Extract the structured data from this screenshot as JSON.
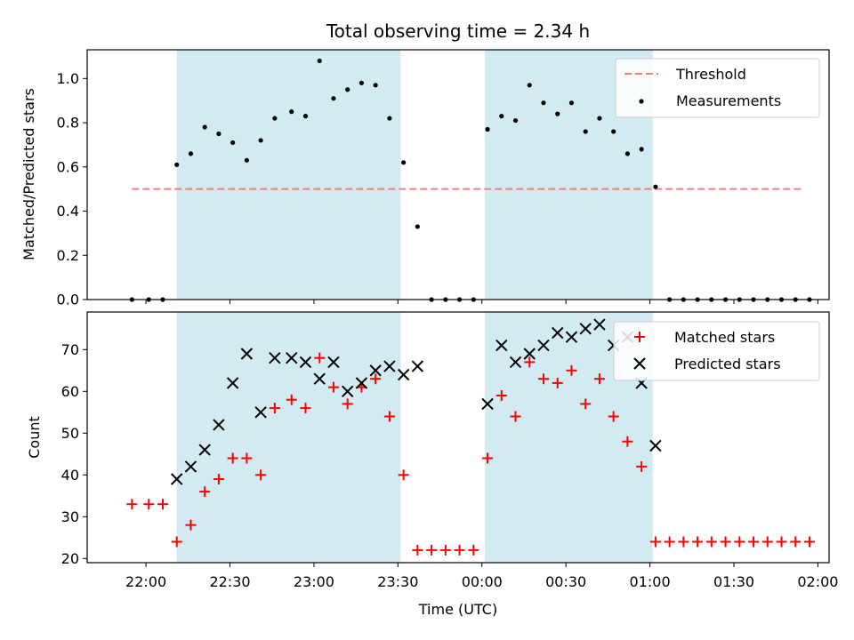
{
  "title": "Total observing time = 2.34 h",
  "chart_data": [
    {
      "type": "scatter",
      "ylabel": "Matched/Predicted stars",
      "ylim": [
        0,
        1.13
      ],
      "yticks": [
        "0.0",
        "0.2",
        "0.4",
        "0.6",
        "0.8",
        "1.0"
      ],
      "threshold": {
        "name": "Threshold",
        "y": 0.5,
        "x_start": "21:55",
        "x_end": "01:55",
        "color": "#f08080"
      },
      "series": [
        {
          "name": "Measurements",
          "color": "#000000",
          "x": [
            "21:55",
            "22:01",
            "22:06",
            "22:11",
            "22:16",
            "22:21",
            "22:26",
            "22:31",
            "22:36",
            "22:41",
            "22:46",
            "22:52",
            "22:57",
            "23:02",
            "23:07",
            "23:12",
            "23:17",
            "23:22",
            "23:27",
            "23:32",
            "23:37",
            "23:42",
            "23:47",
            "23:52",
            "23:57",
            "00:02",
            "00:07",
            "00:12",
            "00:17",
            "00:22",
            "00:27",
            "00:32",
            "00:37",
            "00:42",
            "00:47",
            "00:52",
            "00:57",
            "01:02",
            "01:07",
            "01:12",
            "01:17",
            "01:22",
            "01:27",
            "01:32",
            "01:37",
            "01:42",
            "01:47",
            "01:52",
            "01:57"
          ],
          "y": [
            0,
            0,
            0,
            0.61,
            0.66,
            0.78,
            0.75,
            0.71,
            0.63,
            0.72,
            0.82,
            0.85,
            0.83,
            1.08,
            0.91,
            0.95,
            0.98,
            0.97,
            0.82,
            0.62,
            0.33,
            0,
            0,
            0,
            0,
            0.77,
            0.83,
            0.81,
            0.97,
            0.89,
            0.84,
            0.89,
            0.76,
            0.82,
            0.76,
            0.66,
            0.68,
            0.51,
            0,
            0,
            0,
            0,
            0,
            0,
            0,
            0,
            0,
            0,
            0
          ]
        }
      ],
      "shaded_intervals": [
        [
          "22:11",
          "23:31"
        ],
        [
          "00:01",
          "01:01"
        ]
      ]
    },
    {
      "type": "scatter",
      "xlabel": "Time (UTC)",
      "ylabel": "Count",
      "ylim": [
        19,
        79
      ],
      "yticks": [
        "20",
        "30",
        "40",
        "50",
        "60",
        "70"
      ],
      "xticks": [
        "22:00",
        "22:30",
        "23:00",
        "23:30",
        "00:00",
        "00:30",
        "01:00",
        "01:30",
        "02:00"
      ],
      "series": [
        {
          "name": "Matched stars",
          "marker": "+",
          "color": "#ff0000",
          "x": [
            "21:55",
            "22:01",
            "22:06",
            "22:11",
            "22:16",
            "22:21",
            "22:26",
            "22:31",
            "22:36",
            "22:41",
            "22:46",
            "22:52",
            "22:57",
            "23:02",
            "23:07",
            "23:12",
            "23:17",
            "23:22",
            "23:27",
            "23:32",
            "23:37",
            "23:42",
            "23:47",
            "23:52",
            "23:57",
            "00:02",
            "00:07",
            "00:12",
            "00:17",
            "00:22",
            "00:27",
            "00:32",
            "00:37",
            "00:42",
            "00:47",
            "00:52",
            "00:57",
            "01:02",
            "01:07",
            "01:12",
            "01:17",
            "01:22",
            "01:27",
            "01:32",
            "01:37",
            "01:42",
            "01:47",
            "01:52",
            "01:57"
          ],
          "y": [
            33,
            33,
            33,
            24,
            28,
            36,
            39,
            44,
            44,
            40,
            56,
            58,
            56,
            68,
            61,
            57,
            61,
            63,
            54,
            40,
            22,
            22,
            22,
            22,
            22,
            44,
            59,
            54,
            67,
            63,
            62,
            65,
            57,
            63,
            54,
            48,
            42,
            24,
            24,
            24,
            24,
            24,
            24,
            24,
            24,
            24,
            24,
            24,
            24
          ]
        },
        {
          "name": "Predicted stars",
          "marker": "x",
          "color": "#000000",
          "x": [
            "22:11",
            "22:16",
            "22:21",
            "22:26",
            "22:31",
            "22:36",
            "22:41",
            "22:46",
            "22:52",
            "22:57",
            "23:02",
            "23:07",
            "23:12",
            "23:17",
            "23:22",
            "23:27",
            "23:32",
            "23:37",
            "00:02",
            "00:07",
            "00:12",
            "00:17",
            "00:22",
            "00:27",
            "00:32",
            "00:37",
            "00:42",
            "00:47",
            "00:52",
            "00:57",
            "01:02"
          ],
          "y": [
            39,
            42,
            46,
            52,
            62,
            69,
            55,
            68,
            68,
            67,
            63,
            67,
            60,
            62,
            65,
            66,
            64,
            66,
            57,
            71,
            67,
            69,
            71,
            74,
            73,
            75,
            76,
            71,
            73,
            62,
            47
          ]
        }
      ],
      "shaded_intervals": [
        [
          "22:11",
          "23:31"
        ],
        [
          "00:01",
          "01:01"
        ]
      ]
    }
  ],
  "colors": {
    "shade": "#add8e6",
    "axes": "#000000"
  }
}
